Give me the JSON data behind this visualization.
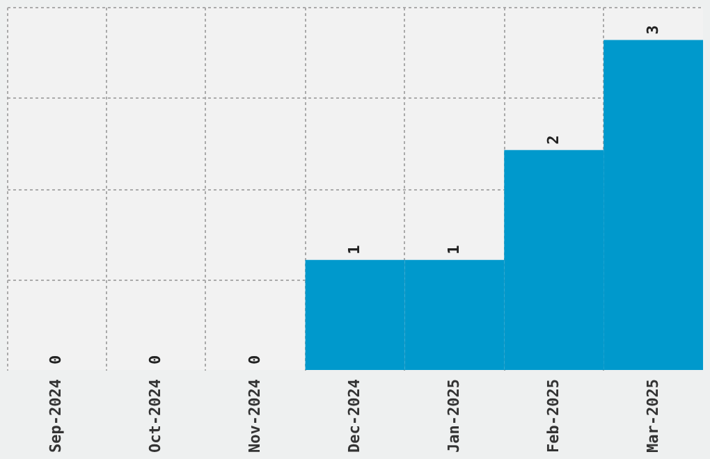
{
  "chart_data": {
    "type": "bar",
    "categories": [
      "Sep-2024",
      "Oct-2024",
      "Nov-2024",
      "Dec-2024",
      "Jan-2025",
      "Feb-2025",
      "Mar-2025"
    ],
    "values": [
      0,
      0,
      0,
      1,
      1,
      2,
      3
    ],
    "color": "#0099cc",
    "ylim": [
      0,
      3.3
    ],
    "yticks": [
      {
        "value": 0.825,
        "label": null
      },
      {
        "value": 1.65,
        "label": null
      },
      {
        "value": 2.475,
        "label": null
      },
      {
        "value": 3.3,
        "label": null
      }
    ],
    "tick_labels": "x",
    "grid": true,
    "data_labels": true
  }
}
